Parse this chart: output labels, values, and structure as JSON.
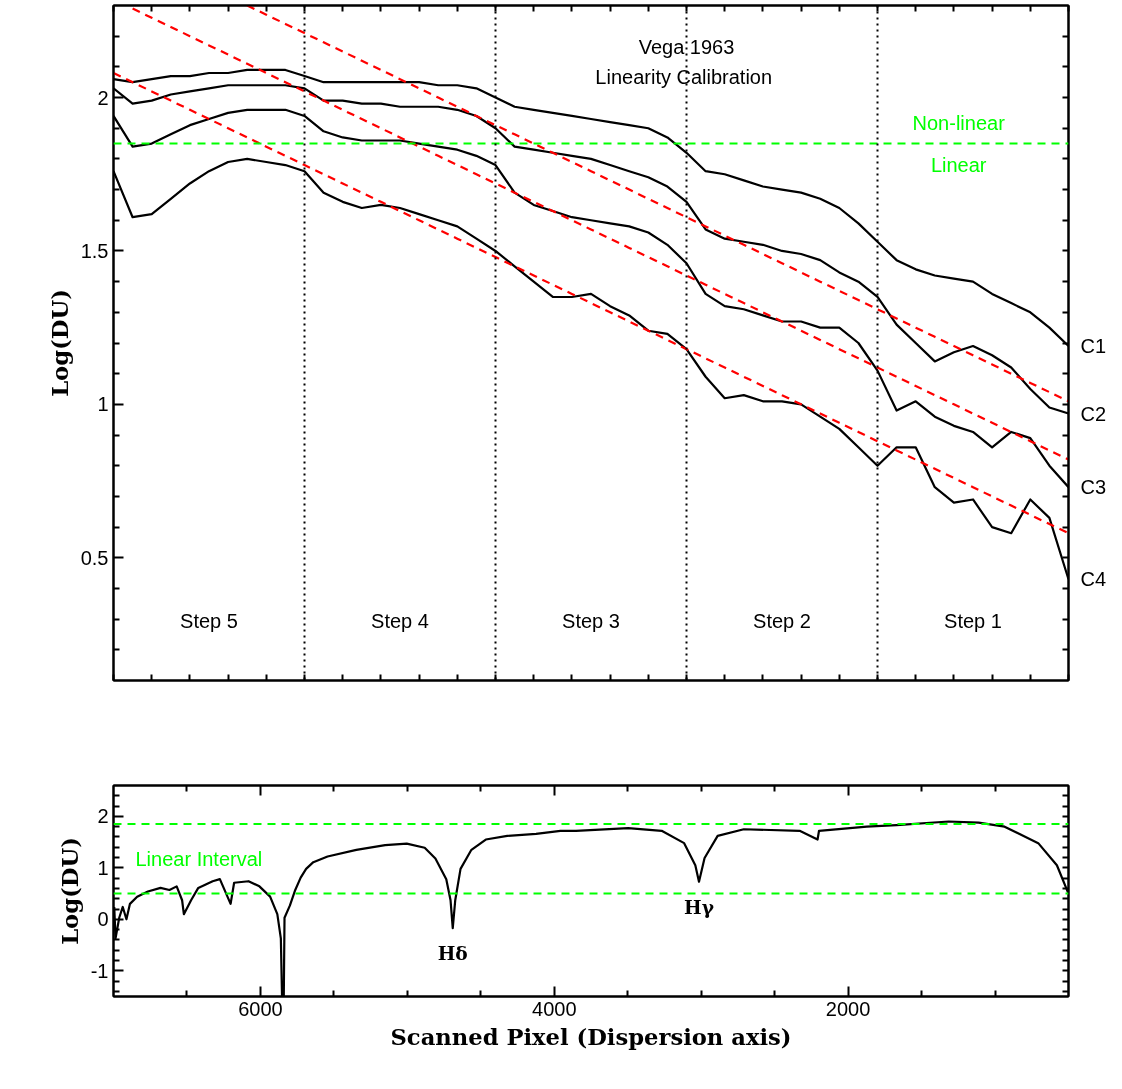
{
  "chart_data": [
    {
      "type": "line",
      "title": "Vega 1963\nLinearity  Calibration",
      "ylabel": "Log(DU)",
      "ylim": [
        0.1,
        2.3
      ],
      "categories": [
        null,
        null,
        null,
        null,
        null,
        null,
        null,
        null,
        null,
        null,
        null,
        null,
        null,
        null,
        null,
        null,
        null,
        null,
        null,
        null,
        null,
        null,
        null,
        null,
        null,
        null,
        null,
        null,
        null,
        null,
        null,
        null,
        null,
        null,
        null,
        null,
        null,
        null,
        null,
        null,
        null,
        null,
        null,
        null,
        null,
        null,
        null,
        null,
        null,
        null,
        null
      ],
      "yticks": [
        {
          "value": 0.2,
          "label": null
        },
        {
          "value": 0.3,
          "label": null
        },
        {
          "value": 0.4,
          "label": null
        },
        0.5,
        {
          "value": 0.6,
          "label": null
        },
        {
          "value": 0.7,
          "label": null
        },
        {
          "value": 0.8,
          "label": null
        },
        {
          "value": 0.9,
          "label": null
        },
        1,
        {
          "value": 1.1,
          "label": null
        },
        {
          "value": 1.2,
          "label": null
        },
        {
          "value": 1.3,
          "label": null
        },
        {
          "value": 1.4,
          "label": null
        },
        1.5,
        {
          "value": 1.6,
          "label": null
        },
        {
          "value": 1.7,
          "label": null
        },
        {
          "value": 1.8,
          "label": null
        },
        {
          "value": 1.9,
          "label": null
        },
        2,
        {
          "value": 2.1,
          "label": null
        },
        {
          "value": 2.2,
          "label": null
        }
      ],
      "tick_labels": "y",
      "line_style": "solid",
      "series": [
        {
          "name": "C1",
          "color": "#000000",
          "values": [
            2.06,
            2.05,
            2.06,
            2.07,
            2.07,
            2.08,
            2.08,
            2.09,
            2.09,
            2.09,
            2.07,
            2.05,
            2.05,
            2.05,
            2.05,
            2.05,
            2.05,
            2.04,
            2.04,
            2.03,
            2.0,
            1.97,
            1.96,
            1.95,
            1.94,
            1.93,
            1.92,
            1.91,
            1.9,
            1.87,
            1.82,
            1.76,
            1.75,
            1.73,
            1.71,
            1.7,
            1.69,
            1.67,
            1.64,
            1.59,
            1.53,
            1.47,
            1.44,
            1.42,
            1.41,
            1.4,
            1.36,
            1.33,
            1.3,
            1.25,
            1.19
          ]
        },
        {
          "name": "C2",
          "color": "#000000",
          "values": [
            2.03,
            1.98,
            1.99,
            2.01,
            2.02,
            2.03,
            2.04,
            2.04,
            2.04,
            2.04,
            2.03,
            1.99,
            1.99,
            1.98,
            1.98,
            1.97,
            1.97,
            1.97,
            1.96,
            1.94,
            1.9,
            1.84,
            1.83,
            1.82,
            1.81,
            1.8,
            1.78,
            1.76,
            1.74,
            1.71,
            1.66,
            1.57,
            1.54,
            1.53,
            1.52,
            1.5,
            1.49,
            1.47,
            1.43,
            1.4,
            1.35,
            1.26,
            1.2,
            1.14,
            1.17,
            1.19,
            1.16,
            1.12,
            1.05,
            0.99,
            0.97
          ]
        },
        {
          "name": "C3",
          "color": "#000000",
          "values": [
            1.94,
            1.84,
            1.85,
            1.88,
            1.91,
            1.93,
            1.95,
            1.96,
            1.96,
            1.96,
            1.94,
            1.89,
            1.87,
            1.86,
            1.86,
            1.86,
            1.85,
            1.84,
            1.83,
            1.81,
            1.78,
            1.69,
            1.65,
            1.63,
            1.61,
            1.6,
            1.59,
            1.58,
            1.56,
            1.52,
            1.46,
            1.36,
            1.32,
            1.31,
            1.29,
            1.27,
            1.27,
            1.25,
            1.25,
            1.2,
            1.11,
            0.98,
            1.01,
            0.96,
            0.93,
            0.91,
            0.86,
            0.91,
            0.89,
            0.8,
            0.73
          ]
        },
        {
          "name": "C4",
          "color": "#000000",
          "values": [
            1.76,
            1.61,
            1.62,
            1.67,
            1.72,
            1.76,
            1.79,
            1.8,
            1.79,
            1.78,
            1.76,
            1.69,
            1.66,
            1.64,
            1.65,
            1.64,
            1.62,
            1.6,
            1.58,
            1.54,
            1.5,
            1.45,
            1.4,
            1.35,
            1.35,
            1.36,
            1.32,
            1.29,
            1.24,
            1.23,
            1.18,
            1.09,
            1.02,
            1.03,
            1.01,
            1.01,
            1.0,
            0.96,
            0.92,
            0.86,
            0.8,
            0.86,
            0.86,
            0.73,
            0.68,
            0.69,
            0.6,
            0.58,
            0.69,
            0.63,
            0.43
          ]
        },
        {
          "color": "#ff0000",
          "line_style": "dashed",
          "values": [
            null,
            null,
            null,
            null,
            null,
            null,
            null,
            2.3,
            2.27,
            2.24,
            2.21,
            2.18,
            2.15,
            2.12,
            2.09,
            2.06,
            2.03,
            2.0,
            1.97,
            1.94,
            1.91,
            1.88,
            1.85,
            1.82,
            1.79,
            1.76,
            1.73,
            1.7,
            1.67,
            1.64,
            1.61,
            1.58,
            1.55,
            1.52,
            1.49,
            1.46,
            1.43,
            1.4,
            1.37,
            1.34,
            1.31,
            1.28,
            1.25,
            1.22,
            1.19,
            1.16,
            1.13,
            1.1,
            1.07,
            1.04,
            1.01
          ]
        },
        {
          "color": "#ff0000",
          "line_style": "dashed",
          "values": [
            null,
            2.29,
            2.26,
            2.23,
            2.2,
            2.17,
            2.14,
            2.11,
            2.08,
            2.05,
            2.02,
            1.99,
            1.96,
            1.93,
            1.9,
            1.87,
            1.84,
            1.81,
            1.78,
            1.75,
            1.72,
            1.69,
            1.66,
            1.63,
            1.6,
            1.57,
            1.54,
            1.51,
            1.48,
            1.45,
            1.42,
            1.39,
            1.36,
            1.33,
            1.3,
            1.27,
            1.24,
            1.21,
            1.18,
            1.15,
            1.12,
            1.09,
            1.06,
            1.03,
            1.0,
            0.97,
            0.94,
            0.91,
            0.88,
            0.85,
            0.82
          ]
        },
        {
          "color": "#ff0000",
          "line_style": "dashed",
          "values": [
            2.08,
            2.05,
            2.02,
            1.99,
            1.96,
            1.93,
            1.9,
            1.87,
            1.84,
            1.81,
            1.78,
            1.75,
            1.72,
            1.69,
            1.66,
            1.63,
            1.6,
            1.57,
            1.54,
            1.51,
            1.48,
            1.45,
            1.42,
            1.39,
            1.36,
            1.33,
            1.3,
            1.27,
            1.24,
            1.21,
            1.18,
            1.15,
            1.12,
            1.09,
            1.06,
            1.03,
            1.0,
            0.97,
            0.94,
            0.91,
            0.88,
            0.85,
            0.82,
            0.79,
            0.76,
            0.73,
            0.7,
            0.67,
            0.64,
            0.61,
            0.58
          ]
        }
      ],
      "legend": "right",
      "grid": "x",
      "ref_lines": [
        {
          "axis": "y",
          "value": 1.85,
          "color": "#00ff00",
          "line_style": "dashed"
        }
      ],
      "annotations": [
        {
          "text": "Non-linear",
          "y": 1.85
        },
        {
          "text": "Linear",
          "y": 1.85
        },
        "Step 5",
        "Step 4",
        "Step 3",
        "Step 2",
        "Step 1"
      ]
    },
    {
      "type": "line",
      "xlabel": "Scanned Pixel (Dispersion axis)",
      "ylabel": "Log(DU)",
      "xlim": [
        7000,
        500
      ],
      "ylim": [
        -1.5,
        2.6
      ],
      "xticks": [
        {
          "value": 6500,
          "label": null
        },
        6000,
        {
          "value": 5500,
          "label": null
        },
        {
          "value": 5000,
          "label": null
        },
        {
          "value": 4500,
          "label": null
        },
        4000,
        {
          "value": 3500,
          "label": null
        },
        {
          "value": 3000,
          "label": null
        },
        {
          "value": 2500,
          "label": null
        },
        2000,
        {
          "value": 1500,
          "label": null
        },
        {
          "value": 1000,
          "label": null
        }
      ],
      "yticks": [
        {
          "value": -1.4,
          "label": null
        },
        {
          "value": -1.2,
          "label": null
        },
        -1,
        {
          "value": -0.8,
          "label": null
        },
        {
          "value": -0.6,
          "label": null
        },
        {
          "value": -0.4,
          "label": null
        },
        {
          "value": -0.2,
          "label": null
        },
        0,
        {
          "value": 0.2,
          "label": null
        },
        {
          "value": 0.4,
          "label": null
        },
        {
          "value": 0.6,
          "label": null
        },
        {
          "value": 0.8,
          "label": null
        },
        1,
        {
          "value": 1.2,
          "label": null
        },
        {
          "value": 1.4,
          "label": null
        },
        {
          "value": 1.6,
          "label": null
        },
        {
          "value": 1.8,
          "label": null
        },
        2,
        {
          "value": 2.2,
          "label": null
        },
        {
          "value": 2.4,
          "label": null
        }
      ],
      "line_style": "solid",
      "series": [
        {
          "color": "#000000",
          "x": [
            6995,
            6986,
            6961,
            6937,
            6912,
            6888,
            6839,
            6766,
            6680,
            6619,
            6570,
            6533,
            6521,
            6472,
            6423,
            6325,
            6276,
            6203,
            6179,
            6081,
            6007,
            5934,
            5885,
            5861,
            5853,
            5841,
            5836,
            5799,
            5763,
            5726,
            5689,
            5640,
            5543,
            5347,
            5151,
            5004,
            4882,
            4809,
            4735,
            4706,
            4691,
            4674,
            4638,
            4564,
            4466,
            4320,
            4124,
            3958,
            3852,
            3497,
            3269,
            3116,
            3040,
            3015,
            2977,
            2888,
            2710,
            2330,
            2208,
            2198,
            1873,
            1670,
            1315,
            1112,
            935,
            706,
            579,
            503
          ],
          "values": [
            0.24,
            -0.37,
            0.03,
            0.24,
            0,
            0.3,
            0.44,
            0.54,
            0.61,
            0.57,
            0.64,
            0.37,
            0.1,
            0.37,
            0.61,
            0.74,
            0.78,
            0.3,
            0.71,
            0.74,
            0.64,
            0.44,
            0.1,
            -0.37,
            -1.49,
            -1.49,
            0.03,
            0.27,
            0.57,
            0.81,
            0.98,
            1.11,
            1.22,
            1.35,
            1.44,
            1.47,
            1.39,
            1.18,
            0.78,
            0.37,
            -0.17,
            0.37,
            0.98,
            1.35,
            1.55,
            1.62,
            1.66,
            1.72,
            1.72,
            1.77,
            1.72,
            1.48,
            1.05,
            0.73,
            1.19,
            1.62,
            1.75,
            1.72,
            1.55,
            1.72,
            1.8,
            1.83,
            1.9,
            1.88,
            1.8,
            1.48,
            1.05,
            0.52
          ]
        }
      ],
      "ref_lines": [
        {
          "axis": "y",
          "value": 1.85,
          "color": "#00ff00",
          "line_style": "dashed"
        },
        {
          "axis": "y",
          "value": 0.5,
          "color": "#00ff00",
          "line_style": "dashed"
        }
      ],
      "annotations": [
        "Linear Interval",
        {
          "text": "Hδ",
          "x": 4691,
          "y": -0.17
        },
        {
          "text": "Hγ",
          "x": 3015,
          "y": 0.73
        }
      ]
    }
  ]
}
